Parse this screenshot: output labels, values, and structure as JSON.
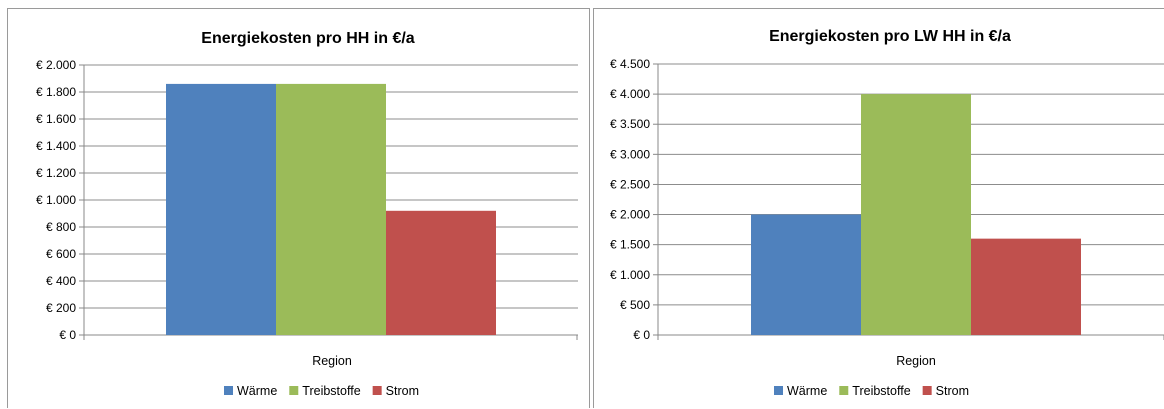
{
  "chart_data": [
    {
      "type": "bar",
      "title": "Energiekosten pro HH in €/a",
      "categories": [
        "Region"
      ],
      "series": [
        {
          "name": "Wärme",
          "values": [
            1860
          ],
          "color": "#4f81bd"
        },
        {
          "name": "Treibstoffe",
          "values": [
            1860
          ],
          "color": "#9bbb59"
        },
        {
          "name": "Strom",
          "values": [
            920
          ],
          "color": "#c0504d"
        }
      ],
      "xlabel": "",
      "ylabel": "",
      "ylim": [
        0,
        2000
      ],
      "yticks": [
        0,
        200,
        400,
        600,
        800,
        1000,
        1200,
        1400,
        1600,
        1800,
        2000
      ],
      "ytick_labels": [
        "€ 0",
        "€ 200",
        "€ 400",
        "€ 600",
        "€ 800",
        "€ 1.000",
        "€ 1.200",
        "€ 1.400",
        "€ 1.600",
        "€ 1.800",
        "€ 2.000"
      ],
      "grid": true,
      "legend": "bottom"
    },
    {
      "type": "bar",
      "title": "Energiekosten pro LW HH in €/a",
      "categories": [
        "Region"
      ],
      "series": [
        {
          "name": "Wärme",
          "values": [
            2000
          ],
          "color": "#4f81bd"
        },
        {
          "name": "Treibstoffe",
          "values": [
            4000
          ],
          "color": "#9bbb59"
        },
        {
          "name": "Strom",
          "values": [
            1600
          ],
          "color": "#c0504d"
        }
      ],
      "xlabel": "",
      "ylabel": "",
      "ylim": [
        0,
        4500
      ],
      "yticks": [
        0,
        500,
        1000,
        1500,
        2000,
        2500,
        3000,
        3500,
        4000,
        4500
      ],
      "ytick_labels": [
        "€ 0",
        "€ 500",
        "€ 1.000",
        "€ 1.500",
        "€ 2.000",
        "€ 2.500",
        "€ 3.000",
        "€ 3.500",
        "€ 4.000",
        "€ 4.500"
      ],
      "grid": true,
      "legend": "bottom"
    }
  ]
}
